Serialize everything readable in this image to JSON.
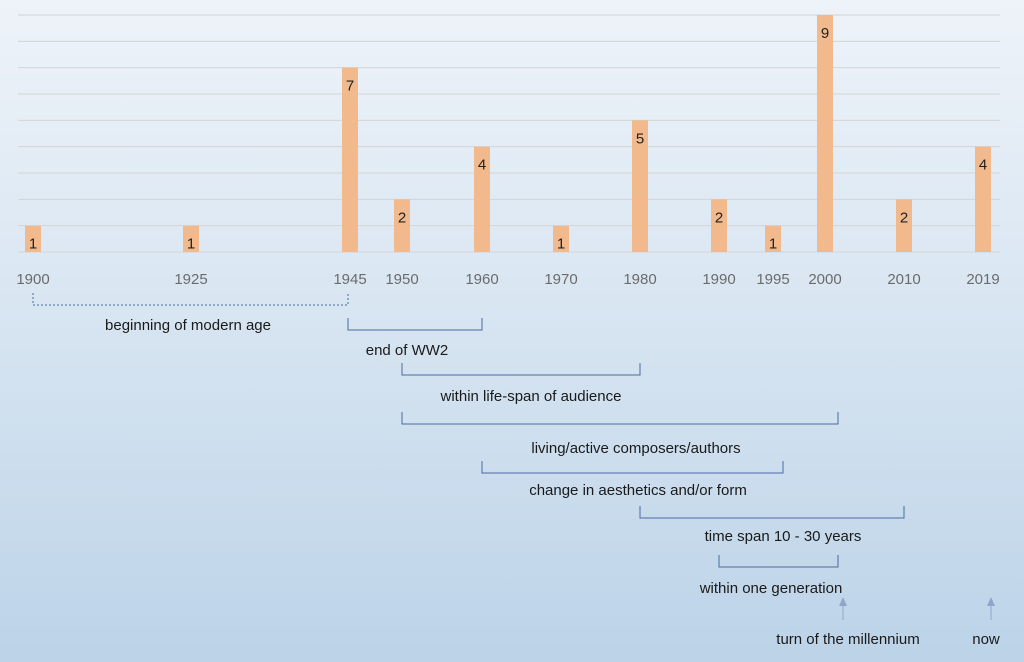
{
  "chart_data": {
    "type": "bar",
    "x_axis": "year",
    "grid": true,
    "categories": [
      "1900",
      "1925",
      "1945",
      "1950",
      "1960",
      "1970",
      "1980",
      "1990",
      "1995",
      "2000",
      "2010",
      "2019"
    ],
    "values": [
      1,
      1,
      7,
      2,
      4,
      1,
      5,
      2,
      1,
      9,
      2,
      4
    ],
    "ylim": [
      0,
      9
    ],
    "bar_color": "#f2b98d",
    "annotations": [
      {
        "label": "beginning of modern age",
        "from": 1900,
        "to": 1945,
        "style": "dashed"
      },
      {
        "label": "end of WW2",
        "from": 1945,
        "to": 1960,
        "style": "solid"
      },
      {
        "label": "within life-span of audience",
        "from": 1950,
        "to": 1980,
        "style": "solid"
      },
      {
        "label": "living/active composers/authors",
        "from": 1950,
        "to": 2000,
        "style": "solid"
      },
      {
        "label": "change in aesthetics and/or form",
        "from": 1960,
        "to": 1995,
        "style": "solid"
      },
      {
        "label": "time span 10 - 30 years",
        "from": 1980,
        "to": 2010,
        "style": "solid"
      },
      {
        "label": "within one generation",
        "from": 1990,
        "to": 2000,
        "style": "solid"
      }
    ],
    "markers": [
      {
        "label": "turn of the millennium",
        "year": 2000
      },
      {
        "label": "now",
        "year": 2019
      }
    ]
  }
}
